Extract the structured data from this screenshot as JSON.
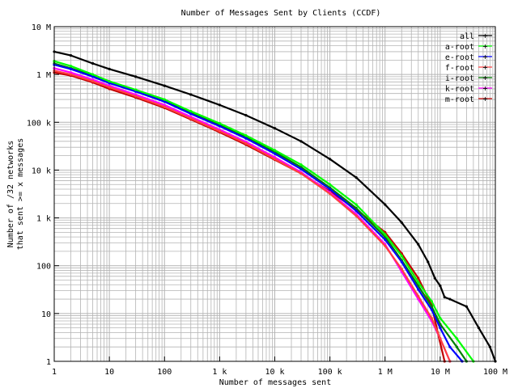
{
  "chart_data": {
    "type": "line",
    "title": "Number of Messages Sent by Clients (CCDF)",
    "xlabel": "Number of messages sent",
    "ylabel_lines": [
      "Number of /32 networks",
      "that sent >= x messages"
    ],
    "x_scale": "log",
    "y_scale": "log",
    "xlim": [
      1,
      100000000
    ],
    "ylim": [
      1,
      10000000
    ],
    "grid": true,
    "legend_position": "top-right",
    "x_ticks": [
      {
        "value": 1,
        "label": "1"
      },
      {
        "value": 10,
        "label": "10"
      },
      {
        "value": 100,
        "label": "100"
      },
      {
        "value": 1000,
        "label": "1 k"
      },
      {
        "value": 10000,
        "label": "10 k"
      },
      {
        "value": 100000,
        "label": "100 k"
      },
      {
        "value": 1000000,
        "label": "1 M"
      },
      {
        "value": 10000000,
        "label": "10 M"
      },
      {
        "value": 100000000,
        "label": "100 M"
      }
    ],
    "y_ticks": [
      {
        "value": 1,
        "label": "1"
      },
      {
        "value": 10,
        "label": "10"
      },
      {
        "value": 100,
        "label": "100"
      },
      {
        "value": 1000,
        "label": "1 k"
      },
      {
        "value": 10000,
        "label": "10 k"
      },
      {
        "value": 100000,
        "label": "100 k"
      },
      {
        "value": 1000000,
        "label": "1 M"
      },
      {
        "value": 10000000,
        "label": "10 M"
      }
    ],
    "series": [
      {
        "name": "all",
        "color": "#000000",
        "x": [
          1,
          2,
          5,
          10,
          30,
          100,
          300,
          1000,
          3000,
          10000,
          30000,
          100000,
          300000,
          1000000,
          2000000,
          4000000,
          6000000,
          8000000,
          10000000,
          12000000,
          15000000,
          30000000,
          50000000,
          80000000,
          100000000
        ],
        "y": [
          3000000,
          2500000,
          1700000,
          1300000,
          900000,
          580000,
          380000,
          230000,
          140000,
          75000,
          40000,
          17000,
          7000,
          1900,
          800,
          280,
          120,
          55,
          38,
          22,
          20,
          14,
          5,
          2,
          1
        ]
      },
      {
        "name": "a-root",
        "color": "#00ff00",
        "x": [
          1,
          2,
          5,
          10,
          30,
          100,
          300,
          1000,
          3000,
          10000,
          30000,
          100000,
          300000,
          1000000,
          2000000,
          4000000,
          7000000,
          10000000,
          20000000,
          40000000
        ],
        "y": [
          1900000,
          1500000,
          1000000,
          720000,
          480000,
          300000,
          170000,
          95000,
          53000,
          26000,
          13000,
          5000,
          1900,
          450,
          160,
          45,
          18,
          8,
          3,
          1
        ]
      },
      {
        "name": "e-root",
        "color": "#0000ff",
        "x": [
          1,
          2,
          5,
          10,
          30,
          100,
          300,
          1000,
          3000,
          10000,
          30000,
          100000,
          300000,
          1000000,
          2000000,
          4000000,
          7000000,
          10000000,
          15000000,
          25000000
        ],
        "y": [
          1600000,
          1300000,
          900000,
          660000,
          440000,
          270000,
          150000,
          83000,
          46000,
          22000,
          10500,
          4000,
          1400,
          350,
          120,
          32,
          12,
          5,
          2,
          1
        ]
      },
      {
        "name": "f-root",
        "color": "#ff4040",
        "x": [
          1,
          2,
          5,
          10,
          30,
          100,
          300,
          1000,
          3000,
          10000,
          30000,
          100000,
          300000,
          1000000,
          2000000,
          4000000,
          7000000,
          10000000,
          15000000
        ],
        "y": [
          1200000,
          1000000,
          720000,
          540000,
          350000,
          210000,
          120000,
          65000,
          36000,
          17000,
          8500,
          3200,
          1100,
          260,
          85,
          23,
          8,
          3,
          1
        ]
      },
      {
        "name": "i-root",
        "color": "#008000",
        "x": [
          1,
          2,
          5,
          10,
          30,
          100,
          300,
          1000,
          3000,
          10000,
          30000,
          100000,
          300000,
          1000000,
          2000000,
          4000000,
          7000000,
          10000000,
          20000000,
          30000000
        ],
        "y": [
          1700000,
          1350000,
          950000,
          700000,
          460000,
          280000,
          160000,
          88000,
          49000,
          24000,
          11500,
          4300,
          1600,
          400,
          130,
          38,
          14,
          6,
          2,
          1
        ]
      },
      {
        "name": "k-root",
        "color": "#ff00ff",
        "x": [
          1,
          2,
          5,
          10,
          30,
          100,
          300,
          1000,
          3000,
          10000,
          30000,
          100000,
          300000,
          1000000,
          2000000,
          4000000,
          7000000,
          10000000,
          15000000
        ],
        "y": [
          1350000,
          1100000,
          780000,
          580000,
          380000,
          230000,
          130000,
          70000,
          39000,
          18500,
          9000,
          3400,
          1200,
          280,
          75,
          20,
          7,
          3,
          1
        ]
      },
      {
        "name": "m-root",
        "color": "#c00000",
        "x": [
          1,
          2,
          5,
          10,
          30,
          100,
          300,
          1000,
          3000,
          10000,
          30000,
          100000,
          300000,
          1000000,
          2000000,
          4000000,
          7000000,
          9000000,
          12000000
        ],
        "y": [
          1100000,
          950000,
          680000,
          500000,
          330000,
          200000,
          115000,
          62000,
          34000,
          16500,
          8500,
          3600,
          1500,
          500,
          180,
          55,
          15,
          4,
          1
        ]
      }
    ]
  }
}
